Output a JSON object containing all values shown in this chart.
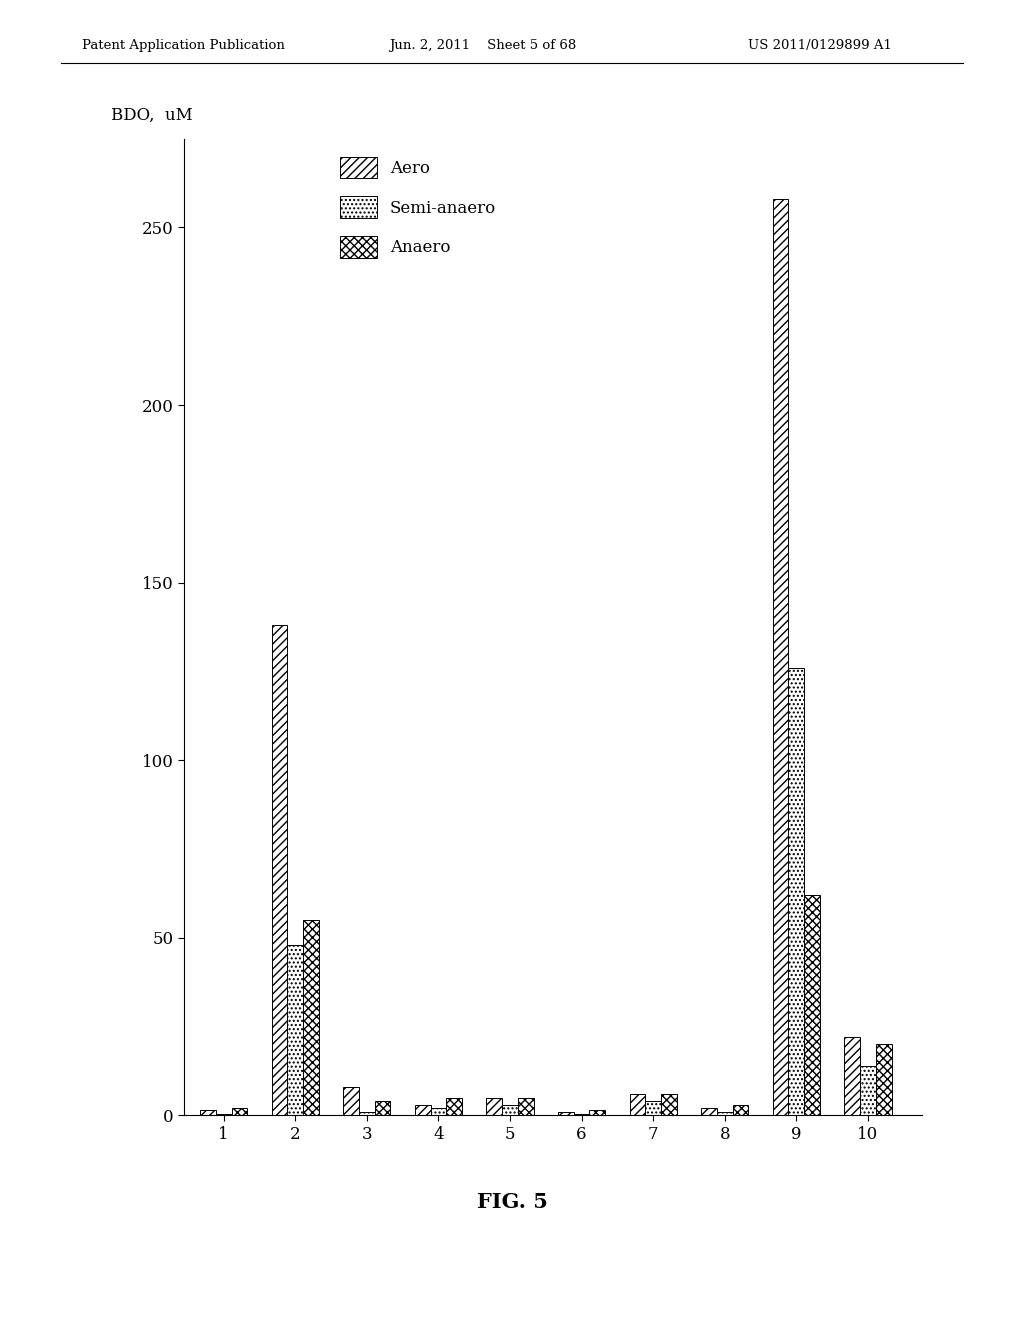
{
  "categories": [
    1,
    2,
    3,
    4,
    5,
    6,
    7,
    8,
    9,
    10
  ],
  "aero": [
    1.5,
    138,
    8,
    3,
    5,
    1,
    6,
    2,
    258,
    22
  ],
  "semi_anaero": [
    0.5,
    48,
    1,
    2,
    3,
    0.3,
    4,
    1,
    126,
    14
  ],
  "anaero": [
    2,
    55,
    4,
    5,
    5,
    1.5,
    6,
    3,
    62,
    20
  ],
  "ylabel": "BDO,  uM",
  "ylim": [
    0,
    275
  ],
  "yticks": [
    0,
    50,
    100,
    150,
    200,
    250
  ],
  "xticks": [
    1,
    2,
    3,
    4,
    5,
    6,
    7,
    8,
    9,
    10
  ],
  "legend_labels": [
    "Aero",
    "Semi-anaero",
    "Anaero"
  ],
  "fig_caption": "FIG. 5",
  "header_left": "Patent Application Publication",
  "header_center": "Jun. 2, 2011    Sheet 5 of 68",
  "header_right": "US 2011/0129899 A1",
  "bar_width": 0.22,
  "background_color": "#ffffff"
}
